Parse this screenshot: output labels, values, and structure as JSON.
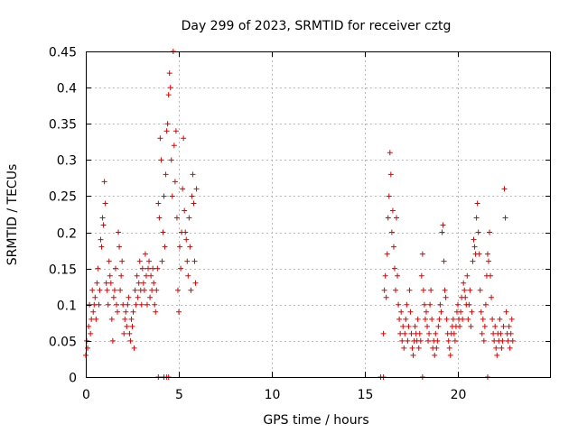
{
  "chart_data": {
    "type": "scatter",
    "title": "Day 299 of 2023, SRMTID for receiver cztg",
    "xlabel": "GPS time / hours",
    "ylabel": "SRMTID / TECUs",
    "xlim": [
      0,
      25
    ],
    "ylim": [
      0,
      0.45
    ],
    "xticks": [
      0,
      5,
      10,
      15,
      20
    ],
    "xtick_labels": [
      "0",
      "5",
      "10",
      "15",
      "20"
    ],
    "yticks": [
      0,
      0.05,
      0.1,
      0.15,
      0.2,
      0.25,
      0.3,
      0.35,
      0.4,
      0.45
    ],
    "ytick_labels": [
      "0",
      "0.05",
      "0.1",
      "0.15",
      "0.2",
      "0.25",
      "0.3",
      "0.35",
      "0.4",
      "0.45"
    ],
    "grid": true,
    "marker": "+",
    "color": "#e00000",
    "series": [
      {
        "points": [
          [
            0.0,
            0.03
          ],
          [
            0.05,
            0.05
          ],
          [
            0.1,
            0.04
          ],
          [
            0.15,
            0.07
          ],
          [
            0.2,
            0.1
          ],
          [
            0.25,
            0.06
          ],
          [
            0.3,
            0.08
          ],
          [
            0.35,
            0.12
          ],
          [
            0.4,
            0.09
          ],
          [
            0.45,
            0.1
          ],
          [
            0.5,
            0.11
          ],
          [
            0.55,
            0.08
          ],
          [
            0.6,
            0.13
          ],
          [
            0.65,
            0.15
          ],
          [
            0.7,
            0.1
          ],
          [
            0.75,
            0.12
          ],
          [
            0.8,
            0.19
          ],
          [
            0.85,
            0.18
          ],
          [
            0.9,
            0.22
          ],
          [
            0.95,
            0.21
          ],
          [
            1.0,
            0.27
          ],
          [
            1.05,
            0.24
          ],
          [
            1.1,
            0.13
          ],
          [
            1.15,
            0.12
          ],
          [
            1.2,
            0.1
          ],
          [
            1.25,
            0.16
          ],
          [
            1.3,
            0.14
          ],
          [
            1.35,
            0.13
          ],
          [
            1.4,
            0.08
          ],
          [
            1.45,
            0.05
          ],
          [
            1.5,
            0.11
          ],
          [
            1.55,
            0.12
          ],
          [
            1.6,
            0.15
          ],
          [
            1.65,
            0.1
          ],
          [
            1.7,
            0.09
          ],
          [
            1.75,
            0.2
          ],
          [
            1.8,
            0.18
          ],
          [
            1.85,
            0.12
          ],
          [
            1.9,
            0.14
          ],
          [
            1.95,
            0.16
          ],
          [
            2.0,
            0.1
          ],
          [
            2.05,
            0.06
          ],
          [
            2.1,
            0.08
          ],
          [
            2.15,
            0.09
          ],
          [
            2.2,
            0.07
          ],
          [
            2.25,
            0.1
          ],
          [
            2.3,
            0.11
          ],
          [
            2.35,
            0.06
          ],
          [
            2.4,
            0.05
          ],
          [
            2.45,
            0.08
          ],
          [
            2.5,
            0.07
          ],
          [
            2.55,
            0.09
          ],
          [
            2.6,
            0.04
          ],
          [
            2.65,
            0.12
          ],
          [
            2.7,
            0.1
          ],
          [
            2.75,
            0.14
          ],
          [
            2.8,
            0.11
          ],
          [
            2.85,
            0.13
          ],
          [
            2.9,
            0.16
          ],
          [
            2.95,
            0.12
          ],
          [
            3.0,
            0.1
          ],
          [
            3.05,
            0.15
          ],
          [
            3.1,
            0.13
          ],
          [
            3.15,
            0.12
          ],
          [
            3.2,
            0.17
          ],
          [
            3.25,
            0.14
          ],
          [
            3.3,
            0.1
          ],
          [
            3.35,
            0.15
          ],
          [
            3.4,
            0.16
          ],
          [
            3.45,
            0.11
          ],
          [
            3.5,
            0.14
          ],
          [
            3.55,
            0.12
          ],
          [
            3.6,
            0.15
          ],
          [
            3.65,
            0.13
          ],
          [
            3.7,
            0.1
          ],
          [
            3.75,
            0.09
          ],
          [
            3.8,
            0.12
          ],
          [
            3.85,
            0.15
          ],
          [
            3.9,
            0.24
          ],
          [
            3.95,
            0.22
          ],
          [
            4.0,
            0.33
          ],
          [
            4.05,
            0.3
          ],
          [
            4.1,
            0.16
          ],
          [
            4.15,
            0.2
          ],
          [
            4.2,
            0.25
          ],
          [
            4.25,
            0.18
          ],
          [
            4.3,
            0.28
          ],
          [
            4.35,
            0.34
          ],
          [
            4.4,
            0.35
          ],
          [
            4.45,
            0.39
          ],
          [
            4.5,
            0.42
          ],
          [
            4.55,
            0.4
          ],
          [
            4.6,
            0.3
          ],
          [
            4.65,
            0.25
          ],
          [
            4.7,
            0.45
          ],
          [
            4.75,
            0.32
          ],
          [
            4.8,
            0.27
          ],
          [
            4.85,
            0.34
          ],
          [
            4.9,
            0.22
          ],
          [
            4.95,
            0.12
          ],
          [
            5.0,
            0.09
          ],
          [
            5.05,
            0.18
          ],
          [
            5.1,
            0.15
          ],
          [
            5.15,
            0.2
          ],
          [
            5.2,
            0.26
          ],
          [
            5.25,
            0.33
          ],
          [
            5.3,
            0.23
          ],
          [
            5.35,
            0.2
          ],
          [
            5.4,
            0.19
          ],
          [
            5.45,
            0.16
          ],
          [
            5.5,
            0.14
          ],
          [
            5.55,
            0.22
          ],
          [
            5.6,
            0.18
          ],
          [
            5.65,
            0.12
          ],
          [
            5.7,
            0.25
          ],
          [
            5.75,
            0.28
          ],
          [
            5.8,
            0.24
          ],
          [
            5.85,
            0.16
          ],
          [
            5.9,
            0.13
          ],
          [
            5.95,
            0.26
          ],
          [
            16.0,
            0.06
          ],
          [
            16.05,
            0.12
          ],
          [
            16.1,
            0.14
          ],
          [
            16.15,
            0.11
          ],
          [
            16.2,
            0.17
          ],
          [
            16.25,
            0.22
          ],
          [
            16.3,
            0.25
          ],
          [
            16.35,
            0.31
          ],
          [
            16.4,
            0.28
          ],
          [
            16.45,
            0.2
          ],
          [
            16.5,
            0.23
          ],
          [
            16.55,
            0.18
          ],
          [
            16.6,
            0.15
          ],
          [
            16.65,
            0.12
          ],
          [
            16.7,
            0.22
          ],
          [
            16.75,
            0.14
          ],
          [
            16.8,
            0.1
          ],
          [
            16.85,
            0.08
          ],
          [
            16.9,
            0.06
          ],
          [
            16.95,
            0.09
          ],
          [
            17.0,
            0.05
          ],
          [
            17.05,
            0.07
          ],
          [
            17.1,
            0.04
          ],
          [
            17.15,
            0.06
          ],
          [
            17.2,
            0.08
          ],
          [
            17.25,
            0.1
          ],
          [
            17.3,
            0.05
          ],
          [
            17.35,
            0.07
          ],
          [
            17.4,
            0.12
          ],
          [
            17.45,
            0.09
          ],
          [
            17.5,
            0.06
          ],
          [
            17.55,
            0.04
          ],
          [
            17.6,
            0.03
          ],
          [
            17.65,
            0.05
          ],
          [
            17.7,
            0.07
          ],
          [
            17.75,
            0.06
          ],
          [
            17.8,
            0.05
          ],
          [
            17.85,
            0.08
          ],
          [
            17.9,
            0.04
          ],
          [
            17.95,
            0.06
          ],
          [
            18.0,
            0.05
          ],
          [
            18.05,
            0.14
          ],
          [
            18.1,
            0.17
          ],
          [
            18.15,
            0.12
          ],
          [
            18.2,
            0.1
          ],
          [
            18.25,
            0.08
          ],
          [
            18.3,
            0.09
          ],
          [
            18.35,
            0.07
          ],
          [
            18.4,
            0.05
          ],
          [
            18.45,
            0.06
          ],
          [
            18.5,
            0.1
          ],
          [
            18.55,
            0.12
          ],
          [
            18.6,
            0.08
          ],
          [
            18.65,
            0.04
          ],
          [
            18.7,
            0.05
          ],
          [
            18.75,
            0.03
          ],
          [
            18.8,
            0.06
          ],
          [
            18.85,
            0.04
          ],
          [
            18.9,
            0.05
          ],
          [
            18.95,
            0.07
          ],
          [
            19.0,
            0.08
          ],
          [
            19.05,
            0.1
          ],
          [
            19.1,
            0.09
          ],
          [
            19.15,
            0.2
          ],
          [
            19.2,
            0.21
          ],
          [
            19.25,
            0.16
          ],
          [
            19.3,
            0.12
          ],
          [
            19.35,
            0.11
          ],
          [
            19.4,
            0.08
          ],
          [
            19.45,
            0.06
          ],
          [
            19.5,
            0.05
          ],
          [
            19.55,
            0.04
          ],
          [
            19.6,
            0.03
          ],
          [
            19.65,
            0.06
          ],
          [
            19.7,
            0.07
          ],
          [
            19.75,
            0.08
          ],
          [
            19.8,
            0.06
          ],
          [
            19.85,
            0.05
          ],
          [
            19.9,
            0.07
          ],
          [
            19.95,
            0.09
          ],
          [
            20.0,
            0.1
          ],
          [
            20.05,
            0.08
          ],
          [
            20.1,
            0.07
          ],
          [
            20.15,
            0.09
          ],
          [
            20.2,
            0.11
          ],
          [
            20.25,
            0.08
          ],
          [
            20.3,
            0.13
          ],
          [
            20.35,
            0.12
          ],
          [
            20.4,
            0.11
          ],
          [
            20.45,
            0.1
          ],
          [
            20.5,
            0.14
          ],
          [
            20.55,
            0.08
          ],
          [
            20.6,
            0.1
          ],
          [
            20.65,
            0.12
          ],
          [
            20.7,
            0.07
          ],
          [
            20.75,
            0.09
          ],
          [
            20.8,
            0.16
          ],
          [
            20.85,
            0.19
          ],
          [
            20.9,
            0.18
          ],
          [
            20.95,
            0.17
          ],
          [
            21.0,
            0.22
          ],
          [
            21.05,
            0.24
          ],
          [
            21.1,
            0.2
          ],
          [
            21.15,
            0.17
          ],
          [
            21.2,
            0.12
          ],
          [
            21.25,
            0.09
          ],
          [
            21.3,
            0.06
          ],
          [
            21.35,
            0.08
          ],
          [
            21.4,
            0.05
          ],
          [
            21.45,
            0.07
          ],
          [
            21.5,
            0.1
          ],
          [
            21.55,
            0.14
          ],
          [
            21.6,
            0.17
          ],
          [
            21.65,
            0.16
          ],
          [
            21.7,
            0.2
          ],
          [
            21.75,
            0.14
          ],
          [
            21.8,
            0.11
          ],
          [
            21.85,
            0.08
          ],
          [
            21.9,
            0.06
          ],
          [
            21.95,
            0.05
          ],
          [
            22.0,
            0.07
          ],
          [
            22.05,
            0.04
          ],
          [
            22.1,
            0.03
          ],
          [
            22.15,
            0.06
          ],
          [
            22.2,
            0.05
          ],
          [
            22.25,
            0.08
          ],
          [
            22.3,
            0.06
          ],
          [
            22.35,
            0.04
          ],
          [
            22.4,
            0.05
          ],
          [
            22.45,
            0.07
          ],
          [
            22.5,
            0.26
          ],
          [
            22.55,
            0.22
          ],
          [
            22.6,
            0.09
          ],
          [
            22.65,
            0.06
          ],
          [
            22.7,
            0.05
          ],
          [
            22.75,
            0.07
          ],
          [
            22.8,
            0.04
          ],
          [
            22.85,
            0.06
          ],
          [
            22.9,
            0.08
          ],
          [
            22.95,
            0.05
          ]
        ]
      }
    ],
    "zero_points_x": [
      3.9,
      4.2,
      4.35,
      4.45,
      15.85,
      16.0,
      18.1,
      21.6
    ]
  }
}
